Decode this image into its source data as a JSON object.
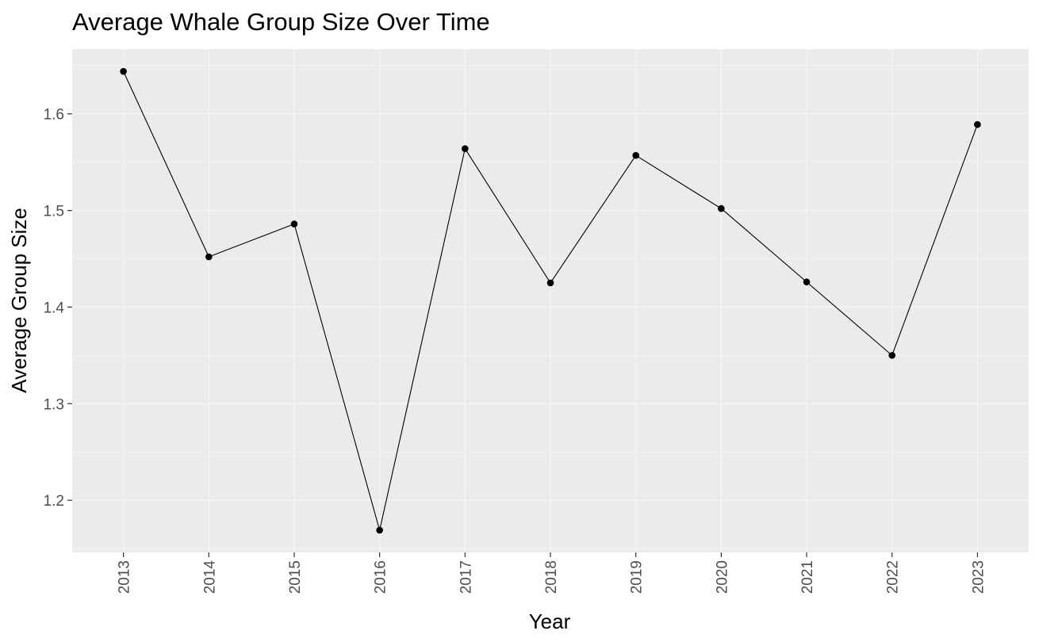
{
  "chart_data": {
    "type": "line",
    "title": "Average Whale Group Size Over Time",
    "xlabel": "Year",
    "ylabel": "Average Group Size",
    "x": [
      "2013",
      "2014",
      "2015",
      "2016",
      "2017",
      "2018",
      "2019",
      "2020",
      "2021",
      "2022",
      "2023"
    ],
    "series": [
      {
        "values": [
          1.644,
          1.452,
          1.486,
          1.169,
          1.564,
          1.425,
          1.557,
          1.502,
          1.426,
          1.35,
          1.589
        ]
      }
    ],
    "yticks": [
      1.2,
      1.3,
      1.4,
      1.5,
      1.6
    ],
    "ytick_labels": [
      "1.2",
      "1.3",
      "1.4",
      "1.5",
      "1.6"
    ],
    "ylim": [
      1.146,
      1.667
    ],
    "grid": true,
    "colors": {
      "panel": "#ebebeb",
      "grid": "#f5f5f5",
      "line": "#000000",
      "point": "#000000"
    }
  }
}
